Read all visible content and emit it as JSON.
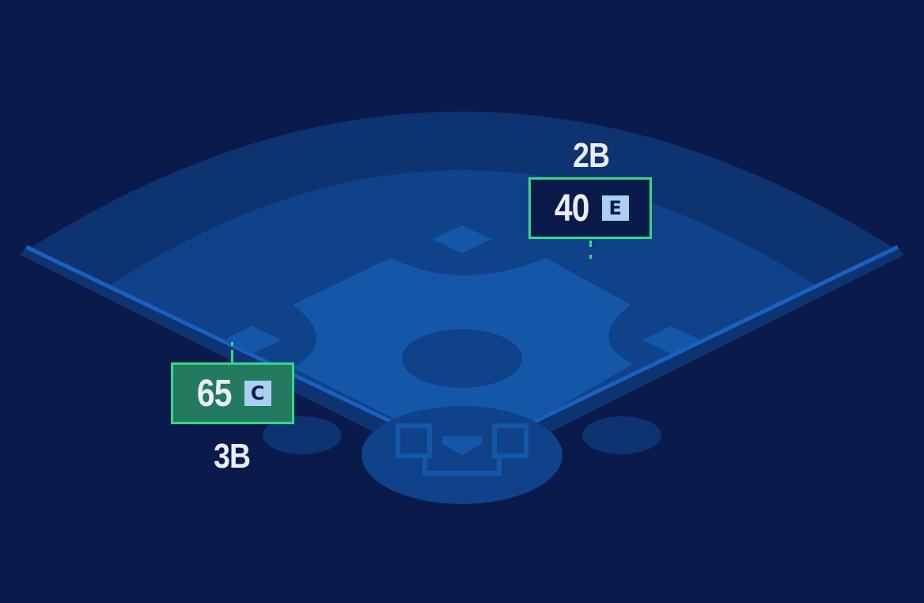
{
  "colors": {
    "background": "#0a1a4b",
    "outfield_outer": "#0d3470",
    "outfield_inner": "#0f4288",
    "infield": "#1457a8",
    "highlight_border": "#34d98a",
    "grade_badge": "#a9d0f0"
  },
  "positions": [
    {
      "label": "2B",
      "rating": "40",
      "grade": "E",
      "box_fill": "#0a1a4b"
    },
    {
      "label": "3B",
      "rating": "65",
      "grade": "C",
      "box_fill": "#237a5e"
    }
  ]
}
